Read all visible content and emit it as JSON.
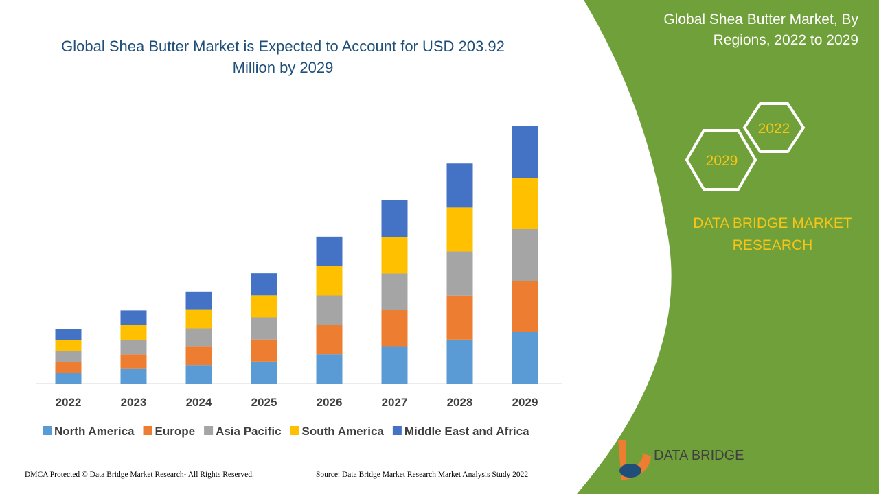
{
  "chart_data": {
    "type": "bar",
    "stacked": true,
    "title": "Global Shea Butter Market is Expected to Account for USD 203.92 Million by 2029",
    "categories": [
      "2022",
      "2023",
      "2024",
      "2025",
      "2026",
      "2027",
      "2028",
      "2029"
    ],
    "series": [
      {
        "name": "North America",
        "color": "#5b9bd5",
        "values": [
          8.7,
          11.6,
          14.6,
          17.5,
          23.3,
          29.1,
          34.9,
          40.8
        ]
      },
      {
        "name": "Europe",
        "color": "#ed7d31",
        "values": [
          8.7,
          11.6,
          14.6,
          17.5,
          23.3,
          29.1,
          34.9,
          40.8
        ]
      },
      {
        "name": "Asia Pacific",
        "color": "#a5a5a5",
        "values": [
          8.7,
          11.6,
          14.6,
          17.5,
          23.3,
          29.1,
          34.9,
          40.8
        ]
      },
      {
        "name": "South America",
        "color": "#ffc000",
        "values": [
          8.7,
          11.6,
          14.6,
          17.5,
          23.3,
          29.1,
          34.9,
          40.8
        ]
      },
      {
        "name": "Middle East and Africa",
        "color": "#4472c4",
        "values": [
          8.7,
          11.6,
          14.6,
          17.5,
          23.3,
          29.1,
          34.9,
          40.8
        ]
      }
    ],
    "legend": "bottom"
  },
  "panel": {
    "title": "Global Shea Butter Market, By Regions, 2022 to 2029",
    "hex_start": "2022",
    "hex_end": "2029",
    "brand": "DATA BRIDGE MARKET RESEARCH"
  },
  "logo": {
    "text": "DATA BRIDGE"
  },
  "footer": {
    "left": "DMCA Protected © Data Bridge Market Research- All Rights Reserved.",
    "right": "Source: Data Bridge Market Research Market Analysis Study 2022"
  }
}
